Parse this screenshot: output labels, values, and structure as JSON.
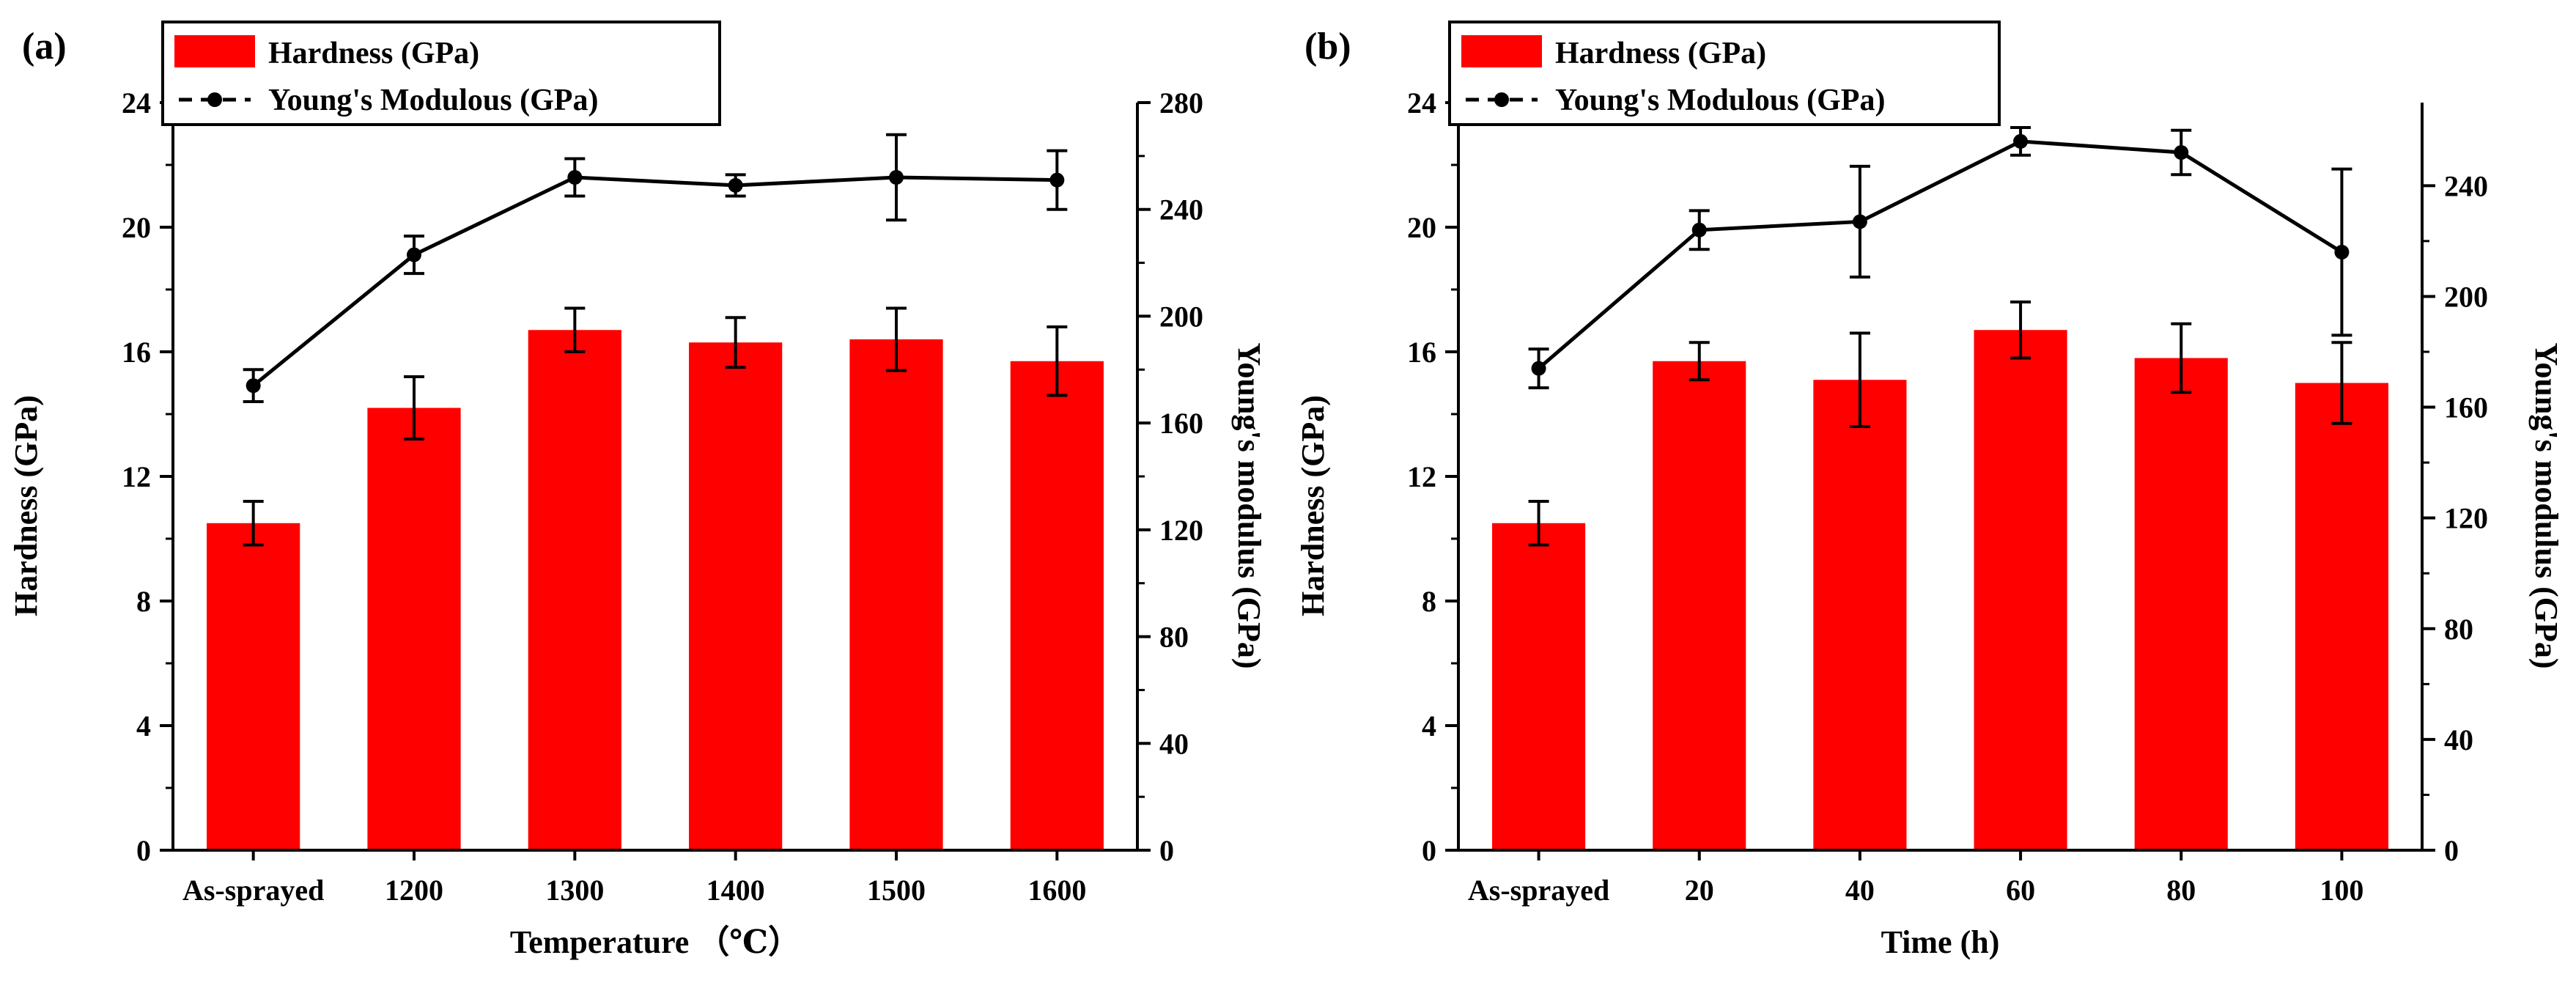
{
  "colors": {
    "bar": "#ff0000",
    "line": "#000000",
    "axis": "#000000",
    "background": "#ffffff"
  },
  "panels": [
    {
      "panel_label": "(a)",
      "legend": {
        "bar_label": "Hardness (GPa)",
        "line_label": "Young's Modulous (GPa)"
      }
    },
    {
      "panel_label": "(b)",
      "legend": {
        "bar_label": "Hardness (GPa)",
        "line_label": "Young's Modulous (GPa)"
      }
    }
  ],
  "chart_data": [
    {
      "type": "bar",
      "title": "",
      "xlabel": "Temperature （℃）",
      "ylabel": "Hardness (GPa)",
      "y2label": "Young's modulus (GPa)",
      "categories": [
        "As-sprayed",
        "1200",
        "1300",
        "1400",
        "1500",
        "1600"
      ],
      "ylim": [
        0,
        24
      ],
      "yticks": [
        0,
        4,
        8,
        12,
        16,
        20,
        24
      ],
      "y2lim": [
        0,
        280
      ],
      "y2ticks": [
        0,
        40,
        80,
        120,
        160,
        200,
        240,
        280
      ],
      "series": [
        {
          "name": "Hardness (GPa)",
          "type": "bar",
          "axis": "left",
          "values": [
            10.5,
            14.2,
            16.7,
            16.3,
            16.4,
            15.7
          ],
          "errors": [
            0.7,
            1.0,
            0.7,
            0.8,
            1.0,
            1.1
          ]
        },
        {
          "name": "Young's Modulous (GPa)",
          "type": "line",
          "axis": "right",
          "values": [
            174,
            223,
            252,
            249,
            252,
            251
          ],
          "errors": [
            6,
            7,
            7,
            4,
            16,
            11
          ]
        }
      ]
    },
    {
      "type": "bar",
      "title": "",
      "xlabel": "Time (h)",
      "ylabel": "Hardness (GPa)",
      "y2label": "Young's modulus (GPa)",
      "categories": [
        "As-sprayed",
        "20",
        "40",
        "60",
        "80",
        "100"
      ],
      "ylim": [
        0,
        24
      ],
      "yticks": [
        0,
        4,
        8,
        12,
        16,
        20,
        24
      ],
      "y2lim": [
        0,
        270
      ],
      "y2ticks": [
        0,
        40,
        80,
        120,
        160,
        200,
        240
      ],
      "series": [
        {
          "name": "Hardness (GPa)",
          "type": "bar",
          "axis": "left",
          "values": [
            10.5,
            15.7,
            15.1,
            16.7,
            15.8,
            15.0
          ],
          "errors": [
            0.7,
            0.6,
            1.5,
            0.9,
            1.1,
            1.3
          ]
        },
        {
          "name": "Young's Modulous (GPa)",
          "type": "line",
          "axis": "right",
          "values": [
            174,
            224,
            227,
            256,
            252,
            216
          ],
          "errors": [
            7,
            7,
            20,
            5,
            8,
            30
          ]
        }
      ]
    }
  ]
}
